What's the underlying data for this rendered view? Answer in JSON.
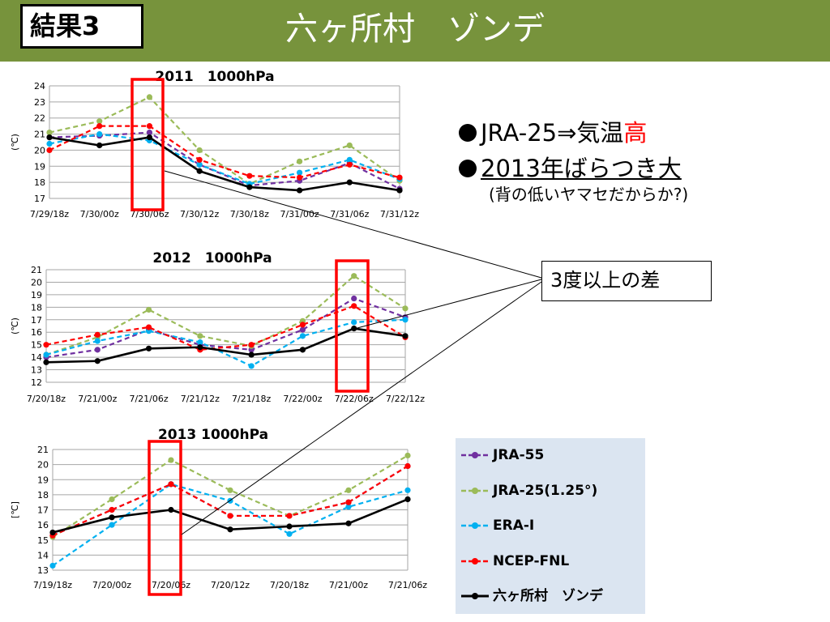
{
  "header": {
    "result_label": "結果3",
    "title": "六ヶ所村　ゾンデ"
  },
  "bullets": [
    {
      "text": "JRA-25⇒気温",
      "highlight": "高"
    },
    {
      "text": "2013年ばらつき大"
    }
  ],
  "note": "(背の低いヤマセだからか?)",
  "callout": "3度以上の差",
  "colors": {
    "header_bg": "#77933c",
    "highlight": "#ff0000",
    "legend_bg": "#dbe5f1",
    "box": "#ff0000"
  },
  "legend": [
    {
      "name": "JRA-55",
      "color": "#7030a0",
      "dash": true
    },
    {
      "name": "JRA-25(1.25°)",
      "color": "#9bbb59",
      "dash": true
    },
    {
      "name": "ERA-I",
      "color": "#00b0f0",
      "dash": true
    },
    {
      "name": "NCEP-FNL",
      "color": "#ff0000",
      "dash": true
    },
    {
      "name": "六ヶ所村　ゾンデ",
      "color": "#000000",
      "dash": false
    }
  ],
  "chart_data": [
    {
      "type": "line",
      "title": "2011　1000hPa",
      "ylabel": "(℃)",
      "ylim": [
        17,
        24
      ],
      "yticks": [
        17,
        18,
        19,
        20,
        21,
        22,
        23,
        24
      ],
      "categories": [
        "7/29/18z",
        "7/30/00z",
        "7/30/06z",
        "7/30/12z",
        "7/30/18z",
        "7/31/00z",
        "7/31/06z",
        "7/31/12z"
      ],
      "highlight_index": 2,
      "grid": true,
      "series": [
        {
          "name": "JRA-55",
          "values": [
            20.8,
            20.9,
            21.1,
            19.1,
            17.8,
            18.1,
            19.2,
            17.6
          ]
        },
        {
          "name": "JRA-25(1.25°)",
          "values": [
            21.1,
            21.8,
            23.3,
            20.0,
            17.9,
            19.3,
            20.3,
            18.1
          ]
        },
        {
          "name": "ERA-I",
          "values": [
            20.4,
            21.0,
            20.6,
            19.1,
            17.9,
            18.6,
            19.4,
            18.2
          ]
        },
        {
          "name": "NCEP-FNL",
          "values": [
            20.0,
            21.5,
            21.5,
            19.4,
            18.4,
            18.3,
            19.1,
            18.3
          ]
        },
        {
          "name": "六ヶ所村　ゾンデ",
          "values": [
            20.8,
            20.3,
            20.8,
            18.7,
            17.7,
            17.5,
            18.0,
            17.5
          ]
        }
      ]
    },
    {
      "type": "line",
      "title": "2012　1000hPa",
      "ylabel": "(℃)",
      "ylim": [
        12,
        21
      ],
      "yticks": [
        12,
        13,
        14,
        15,
        16,
        17,
        18,
        19,
        20,
        21
      ],
      "categories": [
        "7/20/18z",
        "7/21/00z",
        "7/21/06z",
        "7/21/12z",
        "7/21/18z",
        "7/22/00z",
        "7/22/06z",
        "7/22/12z"
      ],
      "highlight_index": 6,
      "grid": true,
      "series": [
        {
          "name": "JRA-55",
          "values": [
            14.0,
            14.6,
            16.2,
            15.0,
            14.6,
            16.2,
            18.7,
            17.2
          ]
        },
        {
          "name": "JRA-25(1.25°)",
          "values": [
            14.2,
            15.6,
            17.8,
            15.7,
            14.9,
            16.9,
            20.5,
            17.9
          ]
        },
        {
          "name": "ERA-I",
          "values": [
            14.2,
            15.3,
            16.1,
            15.2,
            13.3,
            15.7,
            16.8,
            17.0
          ]
        },
        {
          "name": "NCEP-FNL",
          "values": [
            15.0,
            15.8,
            16.4,
            14.6,
            15.0,
            16.6,
            18.1,
            15.6
          ]
        },
        {
          "name": "六ヶ所村　ゾンデ",
          "values": [
            13.6,
            13.7,
            14.7,
            14.8,
            14.2,
            14.6,
            16.3,
            15.7
          ]
        }
      ]
    },
    {
      "type": "line",
      "title": "2013 1000hPa",
      "ylabel": "[℃]",
      "ylim": [
        13,
        21
      ],
      "yticks": [
        13,
        14,
        15,
        16,
        17,
        18,
        19,
        20,
        21
      ],
      "categories": [
        "7/19/18z",
        "7/20/00z",
        "7/20/06z",
        "7/20/12z",
        "7/20/18z",
        "7/21/00z",
        "7/21/06z"
      ],
      "highlight_index": 2,
      "grid": true,
      "series": [
        {
          "name": "JRA-55",
          "values": [
            15.3,
            17.0,
            18.7,
            16.6,
            16.6,
            17.5,
            19.9
          ]
        },
        {
          "name": "JRA-25(1.25°)",
          "values": [
            15.2,
            17.7,
            20.3,
            18.3,
            16.6,
            18.3,
            20.6
          ]
        },
        {
          "name": "ERA-I",
          "values": [
            13.3,
            16.0,
            18.7,
            17.6,
            15.4,
            17.2,
            18.3
          ]
        },
        {
          "name": "NCEP-FNL",
          "values": [
            15.3,
            17.0,
            18.7,
            16.6,
            16.6,
            17.5,
            19.9
          ]
        },
        {
          "name": "六ヶ所村　ゾンデ",
          "values": [
            15.5,
            16.5,
            17.0,
            15.7,
            15.9,
            16.1,
            17.7
          ]
        }
      ]
    }
  ]
}
